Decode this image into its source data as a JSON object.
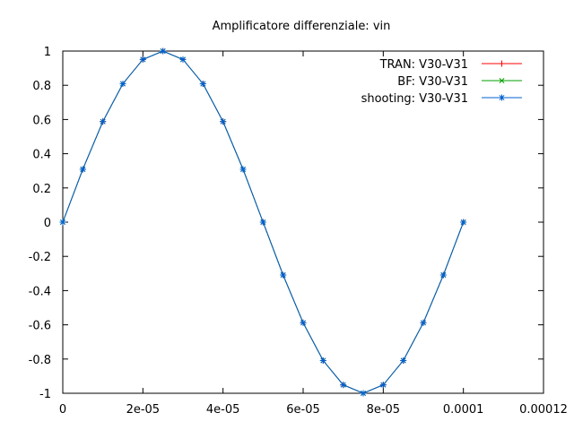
{
  "chart_data": {
    "type": "line",
    "title": "Amplificatore differenziale: vin",
    "xlabel": "",
    "ylabel": "",
    "xlim": [
      0,
      0.00012
    ],
    "ylim": [
      -1,
      1
    ],
    "x_ticks": [
      {
        "value": 0,
        "label": "0"
      },
      {
        "value": 2e-05,
        "label": "2e-05"
      },
      {
        "value": 4e-05,
        "label": "4e-05"
      },
      {
        "value": 6e-05,
        "label": "6e-05"
      },
      {
        "value": 8e-05,
        "label": "8e-05"
      },
      {
        "value": 0.0001,
        "label": "0.0001"
      },
      {
        "value": 0.00012,
        "label": "0.00012"
      }
    ],
    "y_ticks": [
      {
        "value": 1,
        "label": "1"
      },
      {
        "value": 0.8,
        "label": "0.8"
      },
      {
        "value": 0.6,
        "label": "0.6"
      },
      {
        "value": 0.4,
        "label": "0.4"
      },
      {
        "value": 0.2,
        "label": "0.2"
      },
      {
        "value": 0,
        "label": "0"
      },
      {
        "value": -0.2,
        "label": "-0.2"
      },
      {
        "value": -0.4,
        "label": "-0.4"
      },
      {
        "value": -0.6,
        "label": "-0.6"
      },
      {
        "value": -0.8,
        "label": "-0.8"
      },
      {
        "value": -1,
        "label": "-1"
      }
    ],
    "grid": false,
    "legend_position": "top-right",
    "x": [
      0,
      5e-06,
      1e-05,
      1.5e-05,
      2e-05,
      2.5e-05,
      3e-05,
      3.5e-05,
      4e-05,
      4.5e-05,
      5e-05,
      5.5e-05,
      6e-05,
      6.5e-05,
      7e-05,
      7.5e-05,
      8e-05,
      8.5e-05,
      9e-05,
      9.5e-05,
      0.0001
    ],
    "series": [
      {
        "name": "TRAN: V30-V31",
        "color": "#ff0000",
        "marker": "plus",
        "values": [
          0,
          0.309,
          0.588,
          0.809,
          0.951,
          1,
          0.951,
          0.809,
          0.588,
          0.309,
          0,
          -0.309,
          -0.588,
          -0.809,
          -0.951,
          -1,
          -0.951,
          -0.809,
          -0.588,
          -0.309,
          0
        ]
      },
      {
        "name": "BF: V30-V31",
        "color": "#00a000",
        "marker": "cross",
        "values": [
          0,
          0.309,
          0.588,
          0.809,
          0.951,
          1,
          0.951,
          0.809,
          0.588,
          0.309,
          0,
          -0.309,
          -0.588,
          -0.809,
          -0.951,
          -1,
          -0.951,
          -0.809,
          -0.588,
          -0.309,
          0
        ]
      },
      {
        "name": "shooting: V30-V31",
        "color": "#0060d0",
        "marker": "star",
        "values": [
          0,
          0.309,
          0.588,
          0.809,
          0.951,
          1,
          0.951,
          0.809,
          0.588,
          0.309,
          0,
          -0.309,
          -0.588,
          -0.809,
          -0.951,
          -1,
          -0.951,
          -0.809,
          -0.588,
          -0.309,
          0
        ]
      }
    ]
  }
}
